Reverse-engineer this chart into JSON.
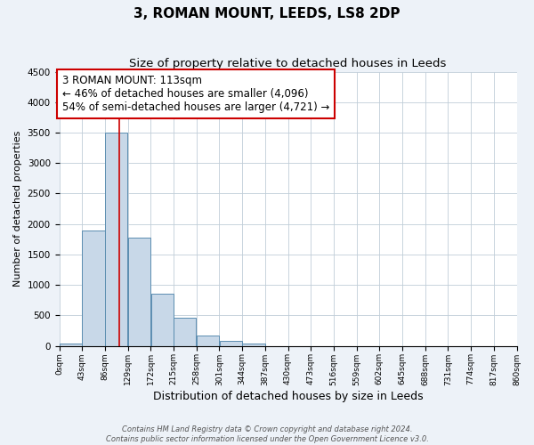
{
  "title": "3, ROMAN MOUNT, LEEDS, LS8 2DP",
  "subtitle": "Size of property relative to detached houses in Leeds",
  "xlabel": "Distribution of detached houses by size in Leeds",
  "ylabel": "Number of detached properties",
  "bin_edges": [
    0,
    43,
    86,
    129,
    172,
    215,
    258,
    301,
    344,
    387,
    430,
    473,
    516,
    559,
    602,
    645,
    688,
    731,
    774,
    817,
    860
  ],
  "bin_labels": [
    "0sqm",
    "43sqm",
    "86sqm",
    "129sqm",
    "172sqm",
    "215sqm",
    "258sqm",
    "301sqm",
    "344sqm",
    "387sqm",
    "430sqm",
    "473sqm",
    "516sqm",
    "559sqm",
    "602sqm",
    "645sqm",
    "688sqm",
    "731sqm",
    "774sqm",
    "817sqm",
    "860sqm"
  ],
  "bar_heights": [
    30,
    1900,
    3500,
    1780,
    850,
    460,
    175,
    80,
    40,
    0,
    0,
    0,
    0,
    0,
    0,
    0,
    0,
    0,
    0,
    0
  ],
  "bar_color": "#c8d8e8",
  "bar_edge_color": "#5b8db0",
  "ylim": [
    0,
    4500
  ],
  "yticks": [
    0,
    500,
    1000,
    1500,
    2000,
    2500,
    3000,
    3500,
    4000,
    4500
  ],
  "vline_x": 113,
  "vline_color": "#cc0000",
  "annotation_text": "3 ROMAN MOUNT: 113sqm\n← 46% of detached houses are smaller (4,096)\n54% of semi-detached houses are larger (4,721) →",
  "annotation_box_color": "#ffffff",
  "annotation_box_edge_color": "#cc0000",
  "annotation_fontsize": 8.5,
  "footer1": "Contains HM Land Registry data © Crown copyright and database right 2024.",
  "footer2": "Contains public sector information licensed under the Open Government Licence v3.0.",
  "background_color": "#edf2f8",
  "plot_bg_color": "#ffffff",
  "grid_color": "#c0cdd8",
  "title_fontsize": 11,
  "subtitle_fontsize": 9.5
}
